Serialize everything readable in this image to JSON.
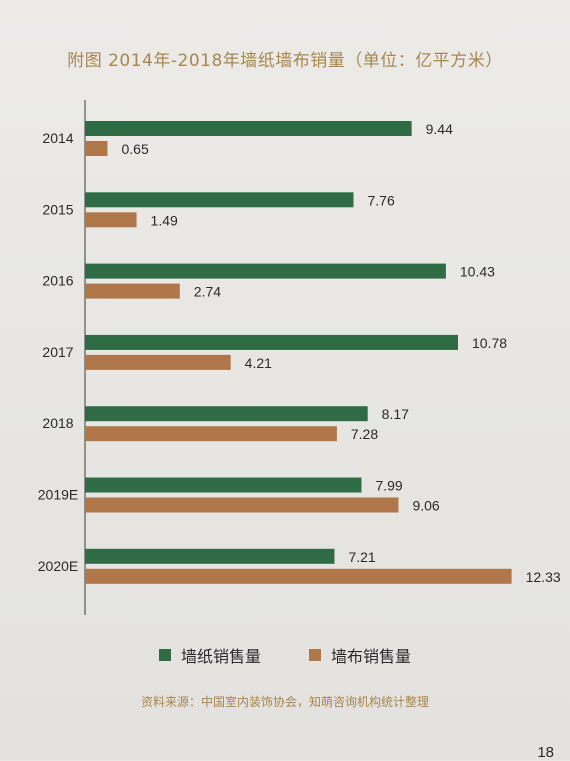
{
  "page_number": "18",
  "source_note": "资料来源：中国室内装饰协会，知萌咨询机构统计整理",
  "colors": {
    "wallpaper": "#2f6b45",
    "wallcloth": "#b0784a",
    "title": "#a8864d"
  },
  "chart_data": {
    "type": "bar",
    "orientation": "horizontal",
    "title": "附图 2014年-2018年墙纸墙布销量（单位：亿平方米）",
    "categories": [
      "2014",
      "2015",
      "2016",
      "2017",
      "2018",
      "2019E",
      "2020E"
    ],
    "series": [
      {
        "name": "墙纸销售量",
        "values": [
          9.44,
          7.76,
          10.43,
          10.78,
          8.17,
          7.99,
          7.21
        ]
      },
      {
        "name": "墙布销售量",
        "values": [
          0.65,
          1.49,
          2.74,
          4.21,
          7.28,
          9.06,
          12.33
        ]
      }
    ],
    "data_labels": {
      "wallpaper": [
        "9.44",
        "7.76",
        "10.43",
        "10.78",
        "8.17",
        "7.99",
        "7.21"
      ],
      "wallcloth": [
        "0.65",
        "1.49",
        "2.74",
        "4.21",
        "7.28",
        "9.06",
        "12.33"
      ]
    },
    "xlim": [
      0,
      13.0
    ],
    "grid": false,
    "legend": "bottom"
  }
}
